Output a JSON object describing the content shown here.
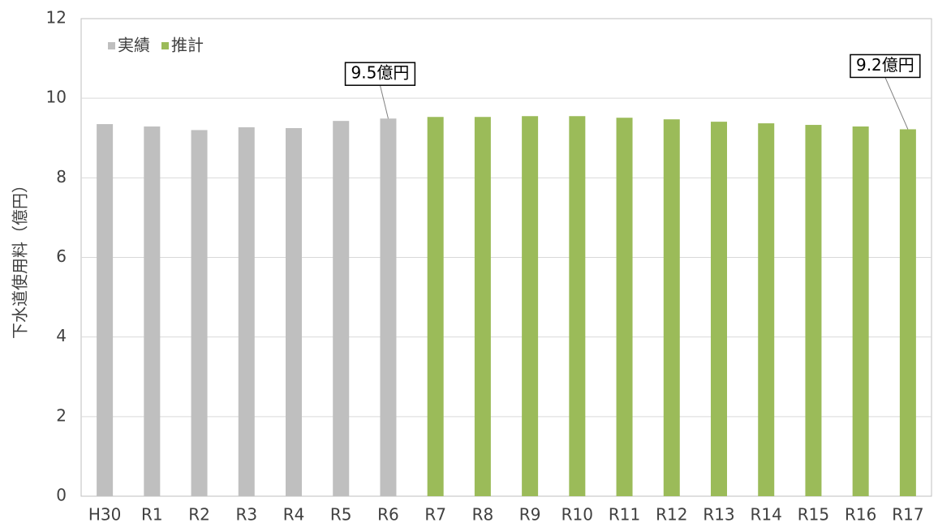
{
  "chart_data": {
    "type": "bar",
    "y_label": "下水道使用料（億円）",
    "categories": [
      "H30",
      "R1",
      "R2",
      "R3",
      "R4",
      "R5",
      "R6",
      "R7",
      "R8",
      "R9",
      "R10",
      "R11",
      "R12",
      "R13",
      "R14",
      "R15",
      "R16",
      "R17"
    ],
    "series": [
      {
        "name": "実績",
        "color": "#bfbfbf",
        "values": [
          9.35,
          9.29,
          9.2,
          9.27,
          9.25,
          9.43,
          9.49,
          null,
          null,
          null,
          null,
          null,
          null,
          null,
          null,
          null,
          null,
          null
        ]
      },
      {
        "name": "推計",
        "color": "#9bbb59",
        "values": [
          null,
          null,
          null,
          null,
          null,
          null,
          null,
          9.53,
          9.53,
          9.55,
          9.55,
          9.51,
          9.47,
          9.41,
          9.37,
          9.33,
          9.29,
          9.22
        ]
      }
    ],
    "annotations": [
      {
        "text": "9.5億円",
        "category": "R6"
      },
      {
        "text": "9.2億円",
        "category": "R17"
      }
    ],
    "ylim": [
      0,
      12
    ],
    "yticks": [
      0,
      2,
      4,
      6,
      8,
      10,
      12
    ],
    "grid": true,
    "legend": "top-left"
  }
}
